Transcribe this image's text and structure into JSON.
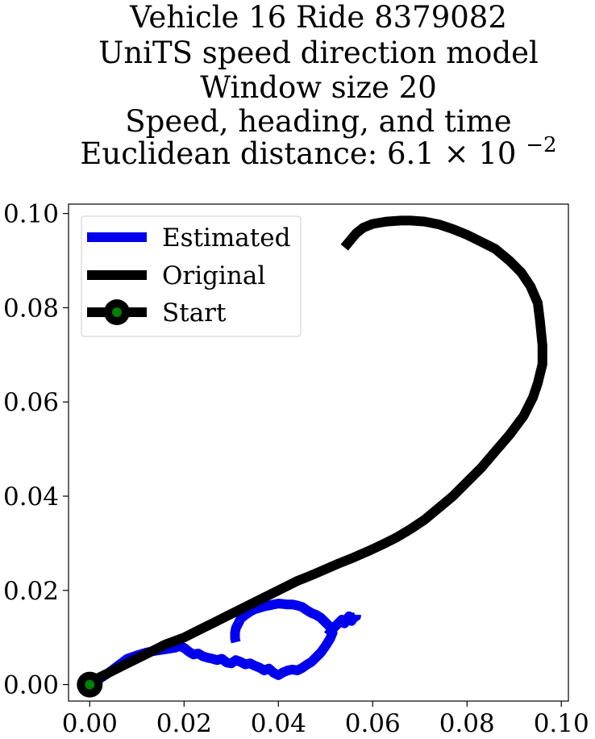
{
  "chart_data": {
    "type": "line",
    "title_lines": [
      "Vehicle 16 Ride 8379082",
      "UniTS speed direction model",
      "Window size 20",
      "Speed, heading, and time"
    ],
    "title_distance_prefix": "Euclidean distance: 6.1",
    "title_distance_times": "×",
    "title_distance_base": "10",
    "title_distance_exponent": "−2",
    "xlim": [
      -0.0045,
      0.1015
    ],
    "ylim": [
      -0.0035,
      0.102
    ],
    "x_ticks": [
      0.0,
      0.02,
      0.04,
      0.06,
      0.08,
      0.1
    ],
    "x_tick_labels": [
      "0.00",
      "0.02",
      "0.04",
      "0.06",
      "0.08",
      "0.10"
    ],
    "y_ticks": [
      0.0,
      0.02,
      0.04,
      0.06,
      0.08,
      0.1
    ],
    "y_tick_labels": [
      "0.00",
      "0.02",
      "0.04",
      "0.06",
      "0.08",
      "0.10"
    ],
    "legend": {
      "position": "upper-left",
      "entries": [
        "Estimated",
        "Original",
        "Start"
      ]
    },
    "colors": {
      "estimated": "#0000ee",
      "original": "#000000",
      "start_marker_edge": "#000000",
      "start_marker_face": "#008000"
    },
    "start_point": {
      "x": 0.0,
      "y": 0.0
    },
    "series": [
      {
        "name": "Original",
        "points": [
          [
            0.0,
            0.0
          ],
          [
            0.002,
            0.0015
          ],
          [
            0.005,
            0.003
          ],
          [
            0.008,
            0.0045
          ],
          [
            0.01,
            0.0055
          ],
          [
            0.013,
            0.007
          ],
          [
            0.016,
            0.0085
          ],
          [
            0.02,
            0.01
          ],
          [
            0.023,
            0.0115
          ],
          [
            0.026,
            0.013
          ],
          [
            0.029,
            0.0145
          ],
          [
            0.032,
            0.016
          ],
          [
            0.035,
            0.0175
          ],
          [
            0.038,
            0.019
          ],
          [
            0.041,
            0.0205
          ],
          [
            0.044,
            0.022
          ],
          [
            0.047,
            0.0232
          ],
          [
            0.05,
            0.0245
          ],
          [
            0.053,
            0.0258
          ],
          [
            0.056,
            0.027
          ],
          [
            0.059,
            0.0283
          ],
          [
            0.062,
            0.0297
          ],
          [
            0.065,
            0.0312
          ],
          [
            0.068,
            0.033
          ],
          [
            0.071,
            0.035
          ],
          [
            0.074,
            0.0375
          ],
          [
            0.077,
            0.04
          ],
          [
            0.08,
            0.043
          ],
          [
            0.083,
            0.046
          ],
          [
            0.086,
            0.0495
          ],
          [
            0.089,
            0.053
          ],
          [
            0.092,
            0.057
          ],
          [
            0.094,
            0.061
          ],
          [
            0.095,
            0.064
          ],
          [
            0.096,
            0.068
          ],
          [
            0.096,
            0.072
          ],
          [
            0.0955,
            0.077
          ],
          [
            0.095,
            0.081
          ],
          [
            0.0935,
            0.0845
          ],
          [
            0.0915,
            0.0875
          ],
          [
            0.089,
            0.09
          ],
          [
            0.086,
            0.0925
          ],
          [
            0.083,
            0.094
          ],
          [
            0.08,
            0.0955
          ],
          [
            0.077,
            0.0967
          ],
          [
            0.074,
            0.0977
          ],
          [
            0.071,
            0.0983
          ],
          [
            0.068,
            0.0985
          ],
          [
            0.066,
            0.0985
          ],
          [
            0.063,
            0.0983
          ],
          [
            0.06,
            0.0978
          ],
          [
            0.058,
            0.097
          ],
          [
            0.0565,
            0.0958
          ],
          [
            0.055,
            0.094
          ],
          [
            0.054,
            0.0928
          ]
        ]
      },
      {
        "name": "Estimated",
        "points": [
          [
            0.0,
            0.0
          ],
          [
            0.002,
            0.0012
          ],
          [
            0.004,
            0.0025
          ],
          [
            0.006,
            0.004
          ],
          [
            0.008,
            0.0055
          ],
          [
            0.01,
            0.0062
          ],
          [
            0.012,
            0.0068
          ],
          [
            0.014,
            0.0072
          ],
          [
            0.016,
            0.0075
          ],
          [
            0.018,
            0.0078
          ],
          [
            0.019,
            0.0082
          ],
          [
            0.02,
            0.0078
          ],
          [
            0.021,
            0.007
          ],
          [
            0.022,
            0.0064
          ],
          [
            0.023,
            0.0066
          ],
          [
            0.024,
            0.006
          ],
          [
            0.025,
            0.0057
          ],
          [
            0.026,
            0.0055
          ],
          [
            0.027,
            0.0052
          ],
          [
            0.028,
            0.0055
          ],
          [
            0.029,
            0.0047
          ],
          [
            0.03,
            0.0045
          ],
          [
            0.031,
            0.0052
          ],
          [
            0.032,
            0.0048
          ],
          [
            0.033,
            0.0043
          ],
          [
            0.034,
            0.0045
          ],
          [
            0.035,
            0.004
          ],
          [
            0.036,
            0.0036
          ],
          [
            0.037,
            0.003
          ],
          [
            0.038,
            0.0034
          ],
          [
            0.039,
            0.0025
          ],
          [
            0.04,
            0.002
          ],
          [
            0.041,
            0.0026
          ],
          [
            0.042,
            0.003
          ],
          [
            0.043,
            0.0032
          ],
          [
            0.044,
            0.003
          ],
          [
            0.045,
            0.0035
          ],
          [
            0.046,
            0.0042
          ],
          [
            0.047,
            0.0048
          ],
          [
            0.048,
            0.0058
          ],
          [
            0.049,
            0.0068
          ],
          [
            0.05,
            0.0082
          ],
          [
            0.051,
            0.0098
          ],
          [
            0.0515,
            0.011
          ],
          [
            0.051,
            0.0122
          ],
          [
            0.05,
            0.0132
          ],
          [
            0.049,
            0.0142
          ],
          [
            0.048,
            0.0148
          ],
          [
            0.047,
            0.0152
          ],
          [
            0.046,
            0.0158
          ],
          [
            0.045,
            0.0165
          ],
          [
            0.044,
            0.0168
          ],
          [
            0.043,
            0.017
          ],
          [
            0.042,
            0.017
          ],
          [
            0.041,
            0.0171
          ],
          [
            0.04,
            0.0172
          ],
          [
            0.039,
            0.017
          ],
          [
            0.038,
            0.0168
          ],
          [
            0.037,
            0.0166
          ],
          [
            0.036,
            0.0163
          ],
          [
            0.035,
            0.016
          ],
          [
            0.034,
            0.0155
          ],
          [
            0.033,
            0.0148
          ],
          [
            0.032,
            0.014
          ],
          [
            0.0315,
            0.013
          ],
          [
            0.031,
            0.012
          ],
          [
            0.0308,
            0.011
          ],
          [
            0.0308,
            0.0098
          ],
          [
            0.031,
            0.009
          ]
        ]
      },
      {
        "name": "Estimated-tail",
        "points": [
          [
            0.0505,
            0.0105
          ],
          [
            0.0515,
            0.0118
          ],
          [
            0.0525,
            0.0128
          ],
          [
            0.0535,
            0.0138
          ],
          [
            0.054,
            0.013
          ],
          [
            0.0545,
            0.0138
          ],
          [
            0.055,
            0.0145
          ],
          [
            0.0555,
            0.0135
          ],
          [
            0.056,
            0.0142
          ],
          [
            0.0565,
            0.0145
          ],
          [
            0.0565,
            0.0148
          ]
        ]
      }
    ]
  }
}
